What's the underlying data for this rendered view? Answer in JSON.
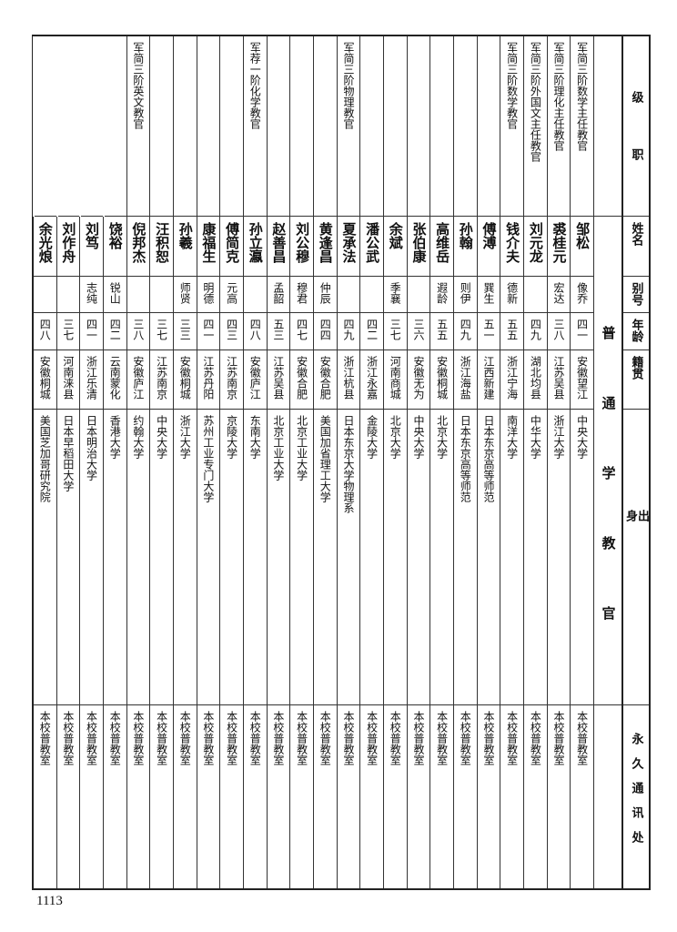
{
  "headers": {
    "rank": "级职",
    "name": "姓名",
    "alias": "别号",
    "age": "年龄",
    "native_place": "籍贯",
    "education": "出身",
    "address": "永久通讯处"
  },
  "section_title": "普通学教官",
  "rows": [
    {
      "rank": "军简三阶数学主任教官",
      "name": "邹松",
      "alias": "像乔",
      "age": "四一",
      "native_place": "安徽望江",
      "education": "中央大学",
      "address": "本校普教室"
    },
    {
      "rank": "军简三阶理化主任教官",
      "name": "裘桂元",
      "alias": "宏达",
      "age": "三八",
      "native_place": "江苏吴县",
      "education": "浙江大学",
      "address": "本校普教室"
    },
    {
      "rank": "军简三阶外国文主任教官",
      "name": "刘元龙",
      "alias": "",
      "age": "四九",
      "native_place": "湖北均县",
      "education": "中华大学",
      "address": "本校普教室"
    },
    {
      "rank": "军简三阶数学教官",
      "name": "钱介夫",
      "alias": "德新",
      "age": "五五",
      "native_place": "浙江宁海",
      "education": "南洋大学",
      "address": "本校普教室"
    },
    {
      "rank": "",
      "name": "傅溥",
      "alias": "巽生",
      "age": "五一",
      "native_place": "江西新建",
      "education": "日本东京高等师范",
      "address": "本校普教室"
    },
    {
      "rank": "",
      "name": "孙翰",
      "alias": "则伊",
      "age": "四九",
      "native_place": "浙江海盐",
      "education": "日本东京高等师范",
      "address": "本校普教室"
    },
    {
      "rank": "",
      "name": "高维岳",
      "alias": "遐龄",
      "age": "五五",
      "native_place": "安徽桐城",
      "education": "北京大学",
      "address": "本校普教室"
    },
    {
      "rank": "",
      "name": "张伯康",
      "alias": "",
      "age": "三六",
      "native_place": "安徽无为",
      "education": "中央大学",
      "address": "本校普教室"
    },
    {
      "rank": "",
      "name": "余斌",
      "alias": "季襄",
      "age": "三七",
      "native_place": "河南商城",
      "education": "北京大学",
      "address": "本校普教室"
    },
    {
      "rank": "",
      "name": "潘公武",
      "alias": "",
      "age": "四二",
      "native_place": "浙江永嘉",
      "education": "金陵大学",
      "address": "本校普教室"
    },
    {
      "rank": "军简三阶物理教官",
      "name": "夏承法",
      "alias": "",
      "age": "四九",
      "native_place": "浙江杭县",
      "education": "日本东京大学物理系",
      "address": "本校普教室"
    },
    {
      "rank": "",
      "name": "黄逢昌",
      "alias": "仲辰",
      "age": "四四",
      "native_place": "安徽合肥",
      "education": "美国加省理工大学",
      "address": "本校普教室"
    },
    {
      "rank": "",
      "name": "刘公穆",
      "alias": "穆君",
      "age": "四七",
      "native_place": "安徽合肥",
      "education": "北京工业大学",
      "address": "本校普教室"
    },
    {
      "rank": "",
      "name": "赵善昌",
      "alias": "孟韶",
      "age": "五三",
      "native_place": "江苏吴县",
      "education": "北京工业大学",
      "address": "本校普教室"
    },
    {
      "rank": "军荐一阶化学教官",
      "name": "孙立瀛",
      "alias": "",
      "age": "四八",
      "native_place": "安徽庐江",
      "education": "东南大学",
      "address": "本校普教室"
    },
    {
      "rank": "",
      "name": "傅简克",
      "alias": "元高",
      "age": "四三",
      "native_place": "江苏南京",
      "education": "京陵大学",
      "address": "本校普教室"
    },
    {
      "rank": "",
      "name": "康福生",
      "alias": "明德",
      "age": "四一",
      "native_place": "江苏丹阳",
      "education": "苏州工业专门大学",
      "address": "本校普教室"
    },
    {
      "rank": "",
      "name": "孙羲",
      "alias": "师贤",
      "age": "三三",
      "native_place": "安徽桐城",
      "education": "浙江大学",
      "address": "本校普教室"
    },
    {
      "rank": "",
      "name": "汪积恕",
      "alias": "",
      "age": "三七",
      "native_place": "江苏南京",
      "education": "中央大学",
      "address": "本校普教室"
    },
    {
      "rank": "军简三阶英文教官",
      "name": "倪邦杰",
      "alias": "",
      "age": "三八",
      "native_place": "安徽庐江",
      "education": "约翰大学",
      "address": "本校普教室"
    },
    {
      "rank": "",
      "name": "饶裕",
      "alias": "锐山",
      "age": "四二",
      "native_place": "云南蒙化",
      "education": "香港大学",
      "address": "本校普教室"
    },
    {
      "rank": "",
      "name": "刘笃",
      "alias": "志纯",
      "age": "四一",
      "native_place": "浙江乐清",
      "education": "日本明治大学",
      "address": "本校普教室"
    },
    {
      "rank": "",
      "name": "刘作舟",
      "alias": "",
      "age": "三七",
      "native_place": "河南涞县",
      "education": "日本早稻田大学",
      "address": "本校普教室"
    },
    {
      "rank": "",
      "name": "余光烺",
      "alias": "",
      "age": "四八",
      "native_place": "安徽桐城",
      "education": "美国芝加哥研究院",
      "address": "本校普教室"
    }
  ],
  "page_number": "1113"
}
